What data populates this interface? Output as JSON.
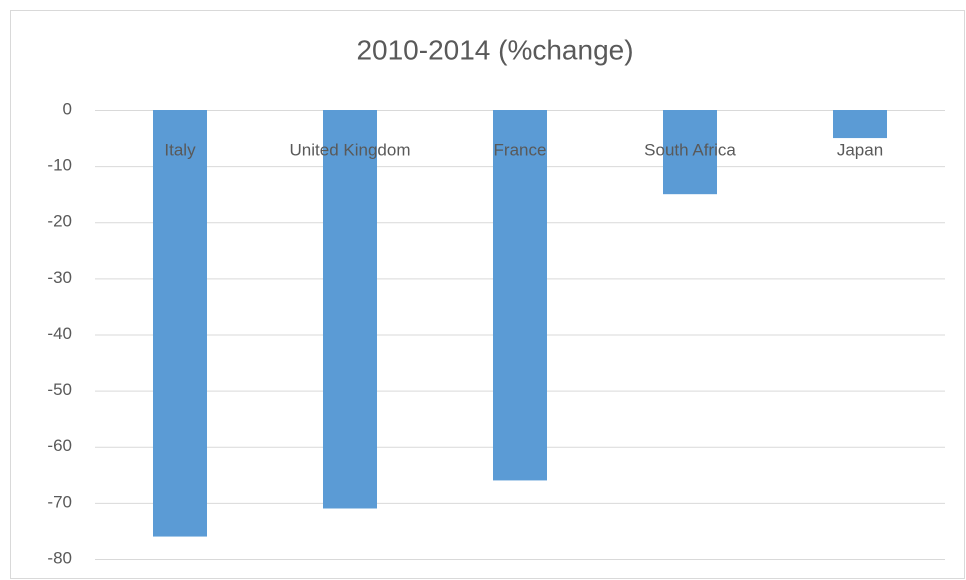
{
  "chart_data": {
    "type": "bar",
    "title": "2010-2014 (%change)",
    "categories": [
      "Italy",
      "United Kingdom",
      "France",
      "South Africa",
      "Japan"
    ],
    "values": [
      -76,
      -71,
      -66,
      -15,
      -5
    ],
    "color": "#5b9bd5",
    "ylim": [
      -80,
      0
    ],
    "yticks": [
      0,
      -10,
      -20,
      -30,
      -40,
      -50,
      -60,
      -70,
      -80
    ],
    "grid": true
  }
}
